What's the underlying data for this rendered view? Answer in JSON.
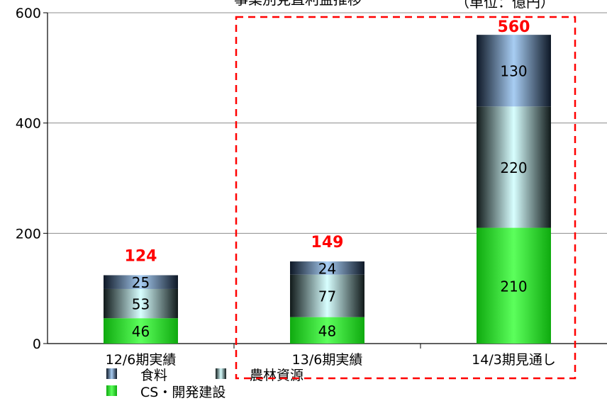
{
  "chart_data": {
    "type": "bar",
    "stacked": true,
    "title": "事業別見直利益推移",
    "unit_note": "（単位：億円）",
    "categories": [
      "12/6期実績",
      "13/6期実績",
      "14/3期見通し"
    ],
    "series": [
      {
        "name": "CS・開発建設",
        "values": [
          46,
          48,
          210
        ],
        "color": "#22dd22"
      },
      {
        "name": "農林資源",
        "values": [
          53,
          77,
          220
        ],
        "color": "#c8f8f8"
      },
      {
        "name": "食料",
        "values": [
          25,
          24,
          130
        ],
        "color": "#9fc3e8"
      }
    ],
    "totals": [
      124,
      149,
      560
    ],
    "ylim": [
      0,
      600
    ],
    "yticks": [
      0,
      200,
      400,
      600
    ],
    "grid": true,
    "highlight": "13/6期実績 – 14/3期見通し (dashed red box)",
    "legend_position": "bottom-left"
  }
}
